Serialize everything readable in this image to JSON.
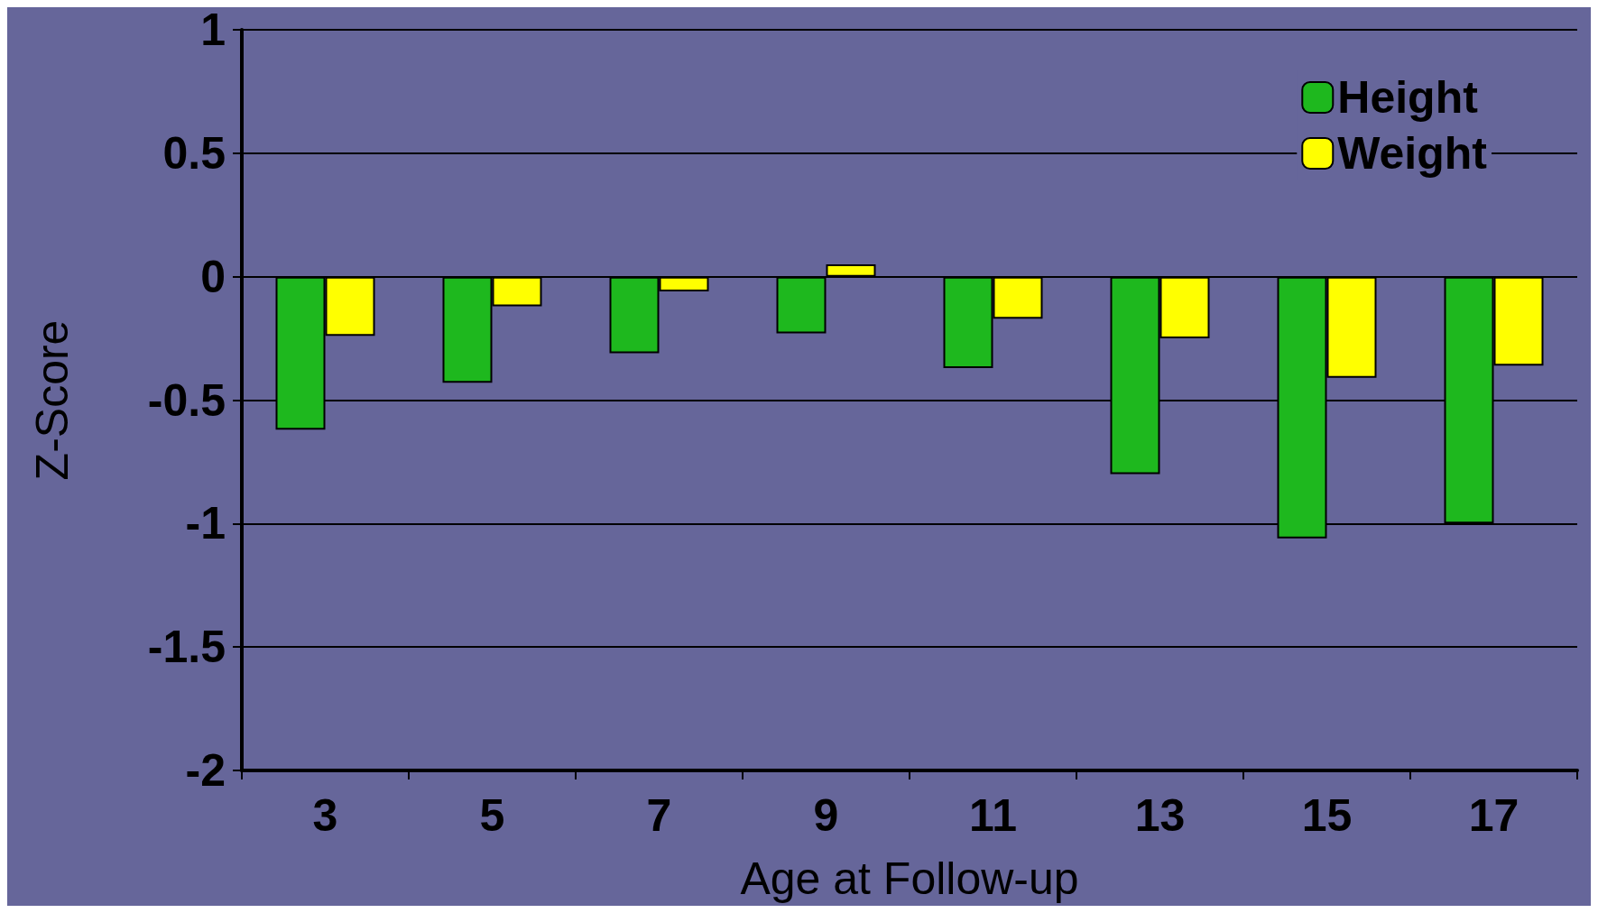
{
  "chart_data": {
    "type": "bar",
    "xlabel": "Age at Follow-up",
    "ylabel": "Z-Score",
    "categories": [
      "3",
      "5",
      "7",
      "9",
      "11",
      "13",
      "15",
      "17"
    ],
    "series": [
      {
        "name": "Height",
        "color": "#1eb81e",
        "values": [
          -0.62,
          -0.43,
          -0.31,
          -0.23,
          -0.37,
          -0.8,
          -1.06,
          -1.0
        ]
      },
      {
        "name": "Weight",
        "color": "#ffff00",
        "values": [
          -0.24,
          -0.12,
          -0.06,
          0.05,
          -0.17,
          -0.25,
          -0.41,
          -0.36
        ]
      }
    ],
    "ylim": [
      -2,
      1
    ],
    "yticks": [
      -2,
      -1.5,
      -1,
      -0.5,
      0,
      0.5,
      1
    ],
    "grid": "y",
    "legend": "top right"
  }
}
